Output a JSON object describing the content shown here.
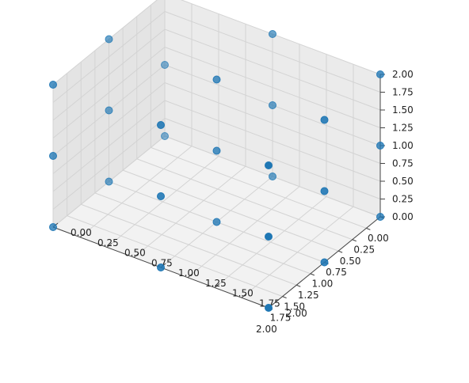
{
  "chart_data": {
    "type": "scatter",
    "projection": "3d",
    "title": "",
    "xlabel": "",
    "ylabel": "",
    "zlabel": "",
    "xlim": [
      0,
      2
    ],
    "ylim": [
      0,
      2
    ],
    "zlim": [
      0,
      2
    ],
    "grid": true,
    "x_ticks": [
      "0.00",
      "0.25",
      "0.50",
      "0.75",
      "1.00",
      "1.25",
      "1.50",
      "1.75",
      "2.00"
    ],
    "y_ticks": [
      "0.00",
      "0.25",
      "0.50",
      "0.75",
      "1.00",
      "1.25",
      "1.50",
      "1.75",
      "2.00"
    ],
    "z_ticks": [
      "0.00",
      "0.25",
      "0.50",
      "0.75",
      "1.00",
      "1.25",
      "1.50",
      "1.75",
      "2.00"
    ],
    "marker_color": "#1f77b4",
    "points": [
      {
        "x": 0,
        "y": 0,
        "z": 0
      },
      {
        "x": 0,
        "y": 0,
        "z": 1
      },
      {
        "x": 0,
        "y": 0,
        "z": 2
      },
      {
        "x": 0,
        "y": 1,
        "z": 0
      },
      {
        "x": 0,
        "y": 1,
        "z": 1
      },
      {
        "x": 0,
        "y": 1,
        "z": 2
      },
      {
        "x": 0,
        "y": 2,
        "z": 0
      },
      {
        "x": 0,
        "y": 2,
        "z": 1
      },
      {
        "x": 0,
        "y": 2,
        "z": 2
      },
      {
        "x": 1,
        "y": 0,
        "z": 0
      },
      {
        "x": 1,
        "y": 0,
        "z": 1
      },
      {
        "x": 1,
        "y": 0,
        "z": 2
      },
      {
        "x": 1,
        "y": 1,
        "z": 0
      },
      {
        "x": 1,
        "y": 1,
        "z": 1
      },
      {
        "x": 1,
        "y": 1,
        "z": 2
      },
      {
        "x": 1,
        "y": 2,
        "z": 0
      },
      {
        "x": 1,
        "y": 2,
        "z": 1
      },
      {
        "x": 1,
        "y": 2,
        "z": 2
      },
      {
        "x": 2,
        "y": 0,
        "z": 0
      },
      {
        "x": 2,
        "y": 0,
        "z": 1
      },
      {
        "x": 2,
        "y": 0,
        "z": 2
      },
      {
        "x": 2,
        "y": 1,
        "z": 0
      },
      {
        "x": 2,
        "y": 1,
        "z": 1
      },
      {
        "x": 2,
        "y": 1,
        "z": 2
      },
      {
        "x": 2,
        "y": 2,
        "z": 0
      },
      {
        "x": 2,
        "y": 2,
        "z": 1
      },
      {
        "x": 2,
        "y": 2,
        "z": 2
      }
    ]
  }
}
